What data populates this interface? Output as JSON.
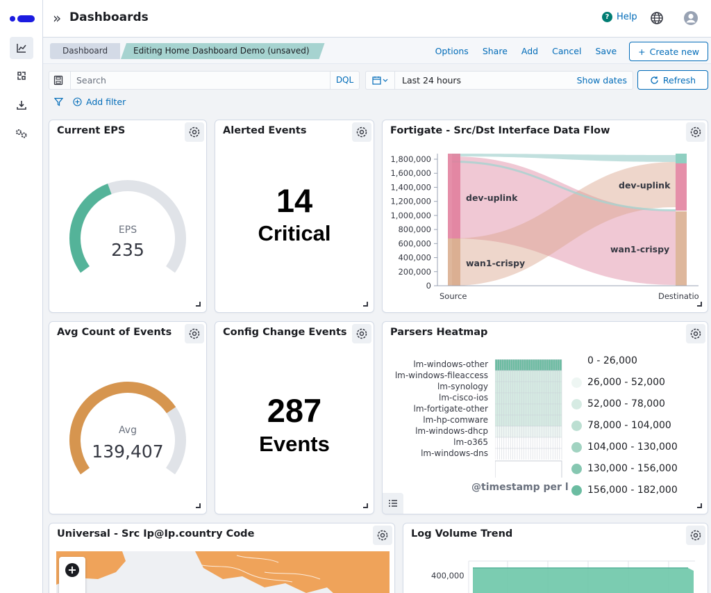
{
  "header": {
    "title": "Dashboards",
    "help_label": "Help"
  },
  "editbar": {
    "breadcrumbs": [
      "Dashboard",
      "Editing Home Dashboard Demo (unsaved)"
    ],
    "actions": [
      "Options",
      "Share",
      "Add",
      "Cancel",
      "Save"
    ],
    "create_new": "Create new"
  },
  "query": {
    "search_placeholder": "Search",
    "language": "DQL",
    "date_range": "Last 24 hours",
    "show_dates": "Show dates",
    "refresh": "Refresh",
    "add_filter": "Add filter"
  },
  "panels": {
    "current_eps": {
      "title": "Current EPS",
      "label": "EPS",
      "value": "235",
      "fraction": 0.42,
      "color": "#54b399"
    },
    "alerted": {
      "title": "Alerted Events",
      "number": "14",
      "label": "Critical"
    },
    "fortigate": {
      "title": "Fortigate - Src/Dst Interface Data Flow"
    },
    "avg_count": {
      "title": "Avg Count of Events",
      "label": "Avg",
      "value": "139,407",
      "fraction": 0.72,
      "color": "#d6954f"
    },
    "config_change": {
      "title": "Config Change Events",
      "number": "287",
      "label": "Events"
    },
    "heatmap": {
      "title": "Parsers Heatmap",
      "rows": [
        "lm-windows-other",
        "lm-windows-fileaccess",
        "lm-synology",
        "lm-cisco-ios",
        "lm-fortigate-other",
        "lm-hp-comware",
        "lm-windows-dhcp",
        "lm-o365",
        "lm-windows-dns"
      ],
      "x_label": "@timestamp per l",
      "legend": [
        {
          "label": "0 - 26,000",
          "color": "#ffffff"
        },
        {
          "label": "26,000 - 52,000",
          "color": "#eef6f3"
        },
        {
          "label": "52,000 - 78,000",
          "color": "#d6ebe3"
        },
        {
          "label": "78,000 - 104,000",
          "color": "#bcdfd2"
        },
        {
          "label": "104,000 - 130,000",
          "color": "#a1d3c1"
        },
        {
          "label": "130,000 - 156,000",
          "color": "#86c7b1"
        },
        {
          "label": "156,000 - 182,000",
          "color": "#6bbca1"
        }
      ]
    },
    "universal": {
      "title": "Universal - Src Ip@Ip.country Code"
    },
    "log_volume": {
      "title": "Log Volume Trend",
      "y_tick": "400,000"
    }
  },
  "chart_data": [
    {
      "type": "sankey",
      "title": "Fortigate - Src/Dst Interface Data Flow",
      "y_ticks": [
        "1,800,000",
        "1,600,000",
        "1,400,000",
        "1,200,000",
        "1,000,000",
        "800,000",
        "600,000",
        "400,000",
        "200,000",
        "0"
      ],
      "ylim": [
        0,
        1800000
      ],
      "x_categories": [
        "Source",
        "Destinatio"
      ],
      "source_nodes": [
        {
          "name": "dev-uplink",
          "range": [
            680000,
            1850000
          ]
        },
        {
          "name": "wan1-crispy",
          "range": [
            0,
            680000
          ]
        }
      ],
      "destination_nodes": [
        {
          "name": "dev-uplink",
          "range": [
            1050000,
            1700000
          ]
        },
        {
          "name": "wan1-crispy",
          "range": [
            0,
            1050000
          ]
        }
      ]
    }
  ]
}
